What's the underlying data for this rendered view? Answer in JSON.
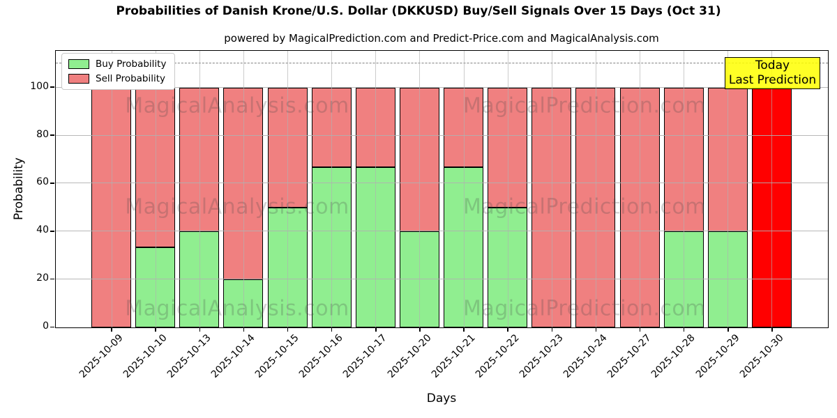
{
  "title": "Probabilities of Danish Krone/U.S. Dollar (DKKUSD) Buy/Sell Signals Over 15 Days (Oct 31)",
  "subtitle": "powered by MagicalPrediction.com and Predict-Price.com and MagicalAnalysis.com",
  "annotation_box": {
    "line1": "Today",
    "line2": "Last Prediction"
  },
  "legend": {
    "items": [
      {
        "label": "Buy Probability",
        "color": "#90EE90"
      },
      {
        "label": "Sell Probability",
        "color": "#F08080"
      }
    ]
  },
  "axes": {
    "xlabel": "Days",
    "ylabel": "Probability",
    "yticks": [
      0,
      20,
      40,
      60,
      80,
      100
    ],
    "ylim": [
      0,
      115
    ],
    "dashed_line_y": 110,
    "grid": true
  },
  "watermarks": {
    "left_text": "MagicalAnalysis.com",
    "right_text": "MagicalPrediction.com"
  },
  "colors": {
    "buy": "#90EE90",
    "sell": "#F08080",
    "today_bar": "#FF0000",
    "annotation_bg": "rgba(255,255,0,0.85)",
    "grid": "#b0b0b0",
    "dashed_line": "#7f7f7f"
  },
  "chart_data": {
    "type": "bar",
    "stacked": true,
    "title": "Probabilities of Danish Krone/U.S. Dollar (DKKUSD) Buy/Sell Signals Over 15 Days (Oct 31)",
    "xlabel": "Days",
    "ylabel": "Probability",
    "ylim": [
      0,
      115
    ],
    "legend_position": "upper left",
    "grid": true,
    "categories": [
      "2025-10-09",
      "2025-10-10",
      "2025-10-13",
      "2025-10-14",
      "2025-10-15",
      "2025-10-16",
      "2025-10-17",
      "2025-10-20",
      "2025-10-21",
      "2025-10-22",
      "2025-10-23",
      "2025-10-24",
      "2025-10-27",
      "2025-10-28",
      "2025-10-29",
      "2025-10-30"
    ],
    "series": [
      {
        "name": "Buy Probability",
        "values": [
          0,
          33.33,
          40,
          20,
          50,
          66.67,
          66.67,
          40,
          66.67,
          50,
          0,
          0,
          0,
          40,
          40,
          0
        ]
      },
      {
        "name": "Sell Probability",
        "values": [
          100,
          66.67,
          60,
          80,
          50,
          33.33,
          33.33,
          60,
          33.33,
          50,
          100,
          100,
          100,
          60,
          60,
          100
        ]
      }
    ],
    "today_index": 15,
    "today_label": "Today / Last Prediction"
  }
}
